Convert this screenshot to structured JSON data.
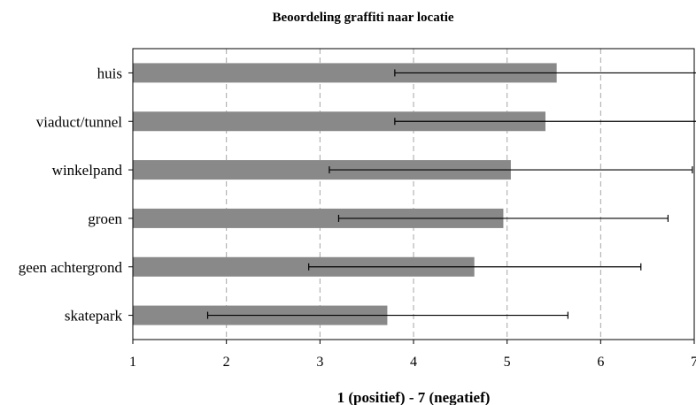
{
  "chart_data": {
    "type": "bar",
    "orientation": "horizontal",
    "title": "Beoordeling graffiti naar locatie",
    "xlabel": "1 (positief) - 7 (negatief)",
    "ylabel": "",
    "categories": [
      "huis",
      "viaduct/tunnel",
      "winkelpand",
      "groen",
      "geen achtergrond",
      "skatepark"
    ],
    "values": [
      5.53,
      5.41,
      5.04,
      4.96,
      4.65,
      3.72
    ],
    "error_low": [
      3.8,
      3.8,
      3.1,
      3.2,
      2.88,
      1.8
    ],
    "error_high": [
      7.07,
      7.02,
      6.98,
      6.72,
      6.43,
      5.65
    ],
    "xlim": [
      1,
      7
    ],
    "xticks": [
      "1",
      "2",
      "3",
      "4",
      "5",
      "6",
      "7"
    ],
    "grid": "vertical dashed",
    "legend": "none",
    "bar_color": "#898989",
    "error_bar_color": "#000000",
    "grid_color": "#a6a6a6"
  }
}
